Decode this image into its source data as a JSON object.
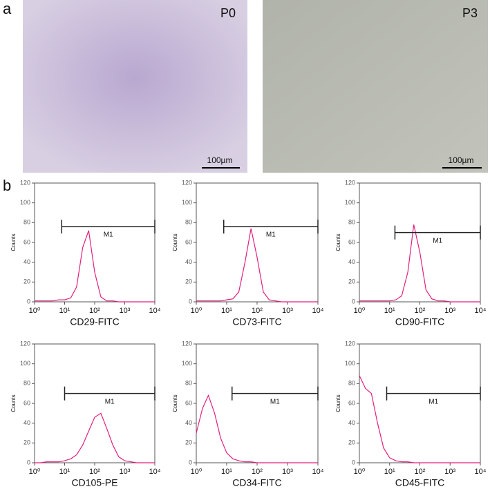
{
  "panels": {
    "a": "a",
    "b": "b",
    "images": [
      {
        "label": "P0",
        "scale_bar": "100µm"
      },
      {
        "label": "P3",
        "scale_bar": "100µm"
      }
    ]
  },
  "chart_data": [
    {
      "type": "line",
      "xlabel": "CD29-FITC",
      "ylabel": "Counts",
      "xscale": "log",
      "color": "#e0207f",
      "xlim": [
        1,
        10000
      ],
      "ylim": [
        0,
        120
      ],
      "xticks": [
        {
          "value": 1,
          "label": "10⁰"
        },
        {
          "value": 10,
          "label": "10¹"
        },
        {
          "value": 100,
          "label": "10²"
        },
        {
          "value": 1000,
          "label": "10³"
        },
        {
          "value": 10000,
          "label": "10⁴"
        }
      ],
      "yticks": [
        0,
        20,
        40,
        60,
        80,
        100,
        120
      ],
      "x": [
        1,
        1.6,
        2.5,
        4,
        6.3,
        10,
        16,
        25,
        40,
        63,
        100,
        160,
        250,
        400,
        630,
        1000,
        2500,
        10000
      ],
      "values": [
        1,
        1,
        1,
        1,
        2,
        2,
        4,
        15,
        55,
        72,
        30,
        5,
        1,
        1,
        0,
        0,
        0,
        0
      ],
      "gate": {
        "label": "M1",
        "from": 8,
        "to": 10000,
        "y": 76
      }
    },
    {
      "type": "line",
      "xlabel": "CD73-FITC",
      "ylabel": "Counts",
      "xscale": "log",
      "color": "#e0207f",
      "xlim": [
        1,
        10000
      ],
      "ylim": [
        0,
        120
      ],
      "xticks": [
        {
          "value": 1,
          "label": "10⁰"
        },
        {
          "value": 10,
          "label": "10¹"
        },
        {
          "value": 100,
          "label": "10²"
        },
        {
          "value": 1000,
          "label": "10³"
        },
        {
          "value": 10000,
          "label": "10⁴"
        }
      ],
      "yticks": [
        0,
        20,
        40,
        60,
        80,
        100,
        120
      ],
      "x": [
        1,
        1.6,
        2.5,
        4,
        6.3,
        10,
        16,
        25,
        40,
        63,
        100,
        160,
        250,
        400,
        630,
        1000,
        2500,
        10000
      ],
      "values": [
        1,
        1,
        1,
        1,
        1,
        2,
        3,
        10,
        40,
        74,
        45,
        10,
        2,
        1,
        0,
        0,
        0,
        0
      ],
      "gate": {
        "label": "M1",
        "from": 8,
        "to": 10000,
        "y": 76
      }
    },
    {
      "type": "line",
      "xlabel": "CD90-FITC",
      "ylabel": "Counts",
      "xscale": "log",
      "color": "#e0207f",
      "xlim": [
        1,
        10000
      ],
      "ylim": [
        0,
        120
      ],
      "xticks": [
        {
          "value": 1,
          "label": "10⁰"
        },
        {
          "value": 10,
          "label": "10¹"
        },
        {
          "value": 100,
          "label": "10²"
        },
        {
          "value": 1000,
          "label": "10³"
        },
        {
          "value": 10000,
          "label": "10⁴"
        }
      ],
      "yticks": [
        0,
        20,
        40,
        60,
        80,
        100,
        120
      ],
      "x": [
        1,
        1.6,
        2.5,
        4,
        6.3,
        10,
        16,
        25,
        40,
        63,
        100,
        160,
        250,
        400,
        630,
        1000,
        2500,
        10000
      ],
      "values": [
        1,
        1,
        1,
        1,
        1,
        1,
        2,
        6,
        30,
        78,
        50,
        12,
        3,
        1,
        1,
        0,
        0,
        0
      ],
      "gate": {
        "label": "M1",
        "from": 15,
        "to": 10000,
        "y": 70
      }
    },
    {
      "type": "line",
      "xlabel": "CD105-PE",
      "ylabel": "Counts",
      "xscale": "log",
      "color": "#e0207f",
      "xlim": [
        1,
        10000
      ],
      "ylim": [
        0,
        120
      ],
      "xticks": [
        {
          "value": 1,
          "label": "10⁰"
        },
        {
          "value": 10,
          "label": "10¹"
        },
        {
          "value": 100,
          "label": "10²"
        },
        {
          "value": 1000,
          "label": "10³"
        },
        {
          "value": 10000,
          "label": "10⁴"
        }
      ],
      "yticks": [
        0,
        20,
        40,
        60,
        80,
        100,
        120
      ],
      "x": [
        1,
        1.6,
        2.5,
        4,
        6.3,
        10,
        16,
        25,
        40,
        63,
        100,
        160,
        250,
        400,
        630,
        1000,
        2500,
        10000
      ],
      "values": [
        0,
        0,
        1,
        1,
        1,
        2,
        4,
        8,
        18,
        32,
        46,
        50,
        35,
        18,
        6,
        2,
        0,
        0
      ],
      "gate": {
        "label": "M1",
        "from": 10,
        "to": 10000,
        "y": 70
      }
    },
    {
      "type": "line",
      "xlabel": "CD34-FITC",
      "ylabel": "Counts",
      "xscale": "log",
      "color": "#e0207f",
      "xlim": [
        1,
        10000
      ],
      "ylim": [
        0,
        120
      ],
      "xticks": [
        {
          "value": 1,
          "label": "10⁰"
        },
        {
          "value": 10,
          "label": "10¹"
        },
        {
          "value": 100,
          "label": "10²"
        },
        {
          "value": 1000,
          "label": "10³"
        },
        {
          "value": 10000,
          "label": "10⁴"
        }
      ],
      "yticks": [
        0,
        20,
        40,
        60,
        80,
        100,
        120
      ],
      "x": [
        1,
        1.6,
        2.5,
        4,
        6.3,
        10,
        16,
        25,
        40,
        63,
        100,
        160,
        250,
        400,
        630,
        1000,
        2500,
        10000
      ],
      "values": [
        30,
        55,
        68,
        50,
        25,
        10,
        4,
        2,
        1,
        1,
        0,
        0,
        0,
        0,
        0,
        0,
        0,
        0
      ],
      "gate": {
        "label": "M1",
        "from": 15,
        "to": 10000,
        "y": 70
      }
    },
    {
      "type": "line",
      "xlabel": "CD45-FITC",
      "ylabel": "Counts",
      "xscale": "log",
      "color": "#e0207f",
      "xlim": [
        1,
        10000
      ],
      "ylim": [
        0,
        120
      ],
      "xticks": [
        {
          "value": 1,
          "label": "10⁰"
        },
        {
          "value": 10,
          "label": "10¹"
        },
        {
          "value": 100,
          "label": "10²"
        },
        {
          "value": 1000,
          "label": "10³"
        },
        {
          "value": 10000,
          "label": "10⁴"
        }
      ],
      "yticks": [
        0,
        20,
        40,
        60,
        80,
        100,
        120
      ],
      "x": [
        1,
        1.6,
        2.5,
        4,
        6.3,
        10,
        16,
        25,
        40,
        63,
        100,
        160,
        250,
        400,
        630,
        1000,
        2500,
        10000
      ],
      "values": [
        88,
        75,
        70,
        40,
        15,
        5,
        2,
        1,
        1,
        0,
        0,
        0,
        0,
        0,
        0,
        0,
        0,
        0
      ],
      "gate": {
        "label": "M1",
        "from": 8,
        "to": 10000,
        "y": 70
      }
    }
  ]
}
